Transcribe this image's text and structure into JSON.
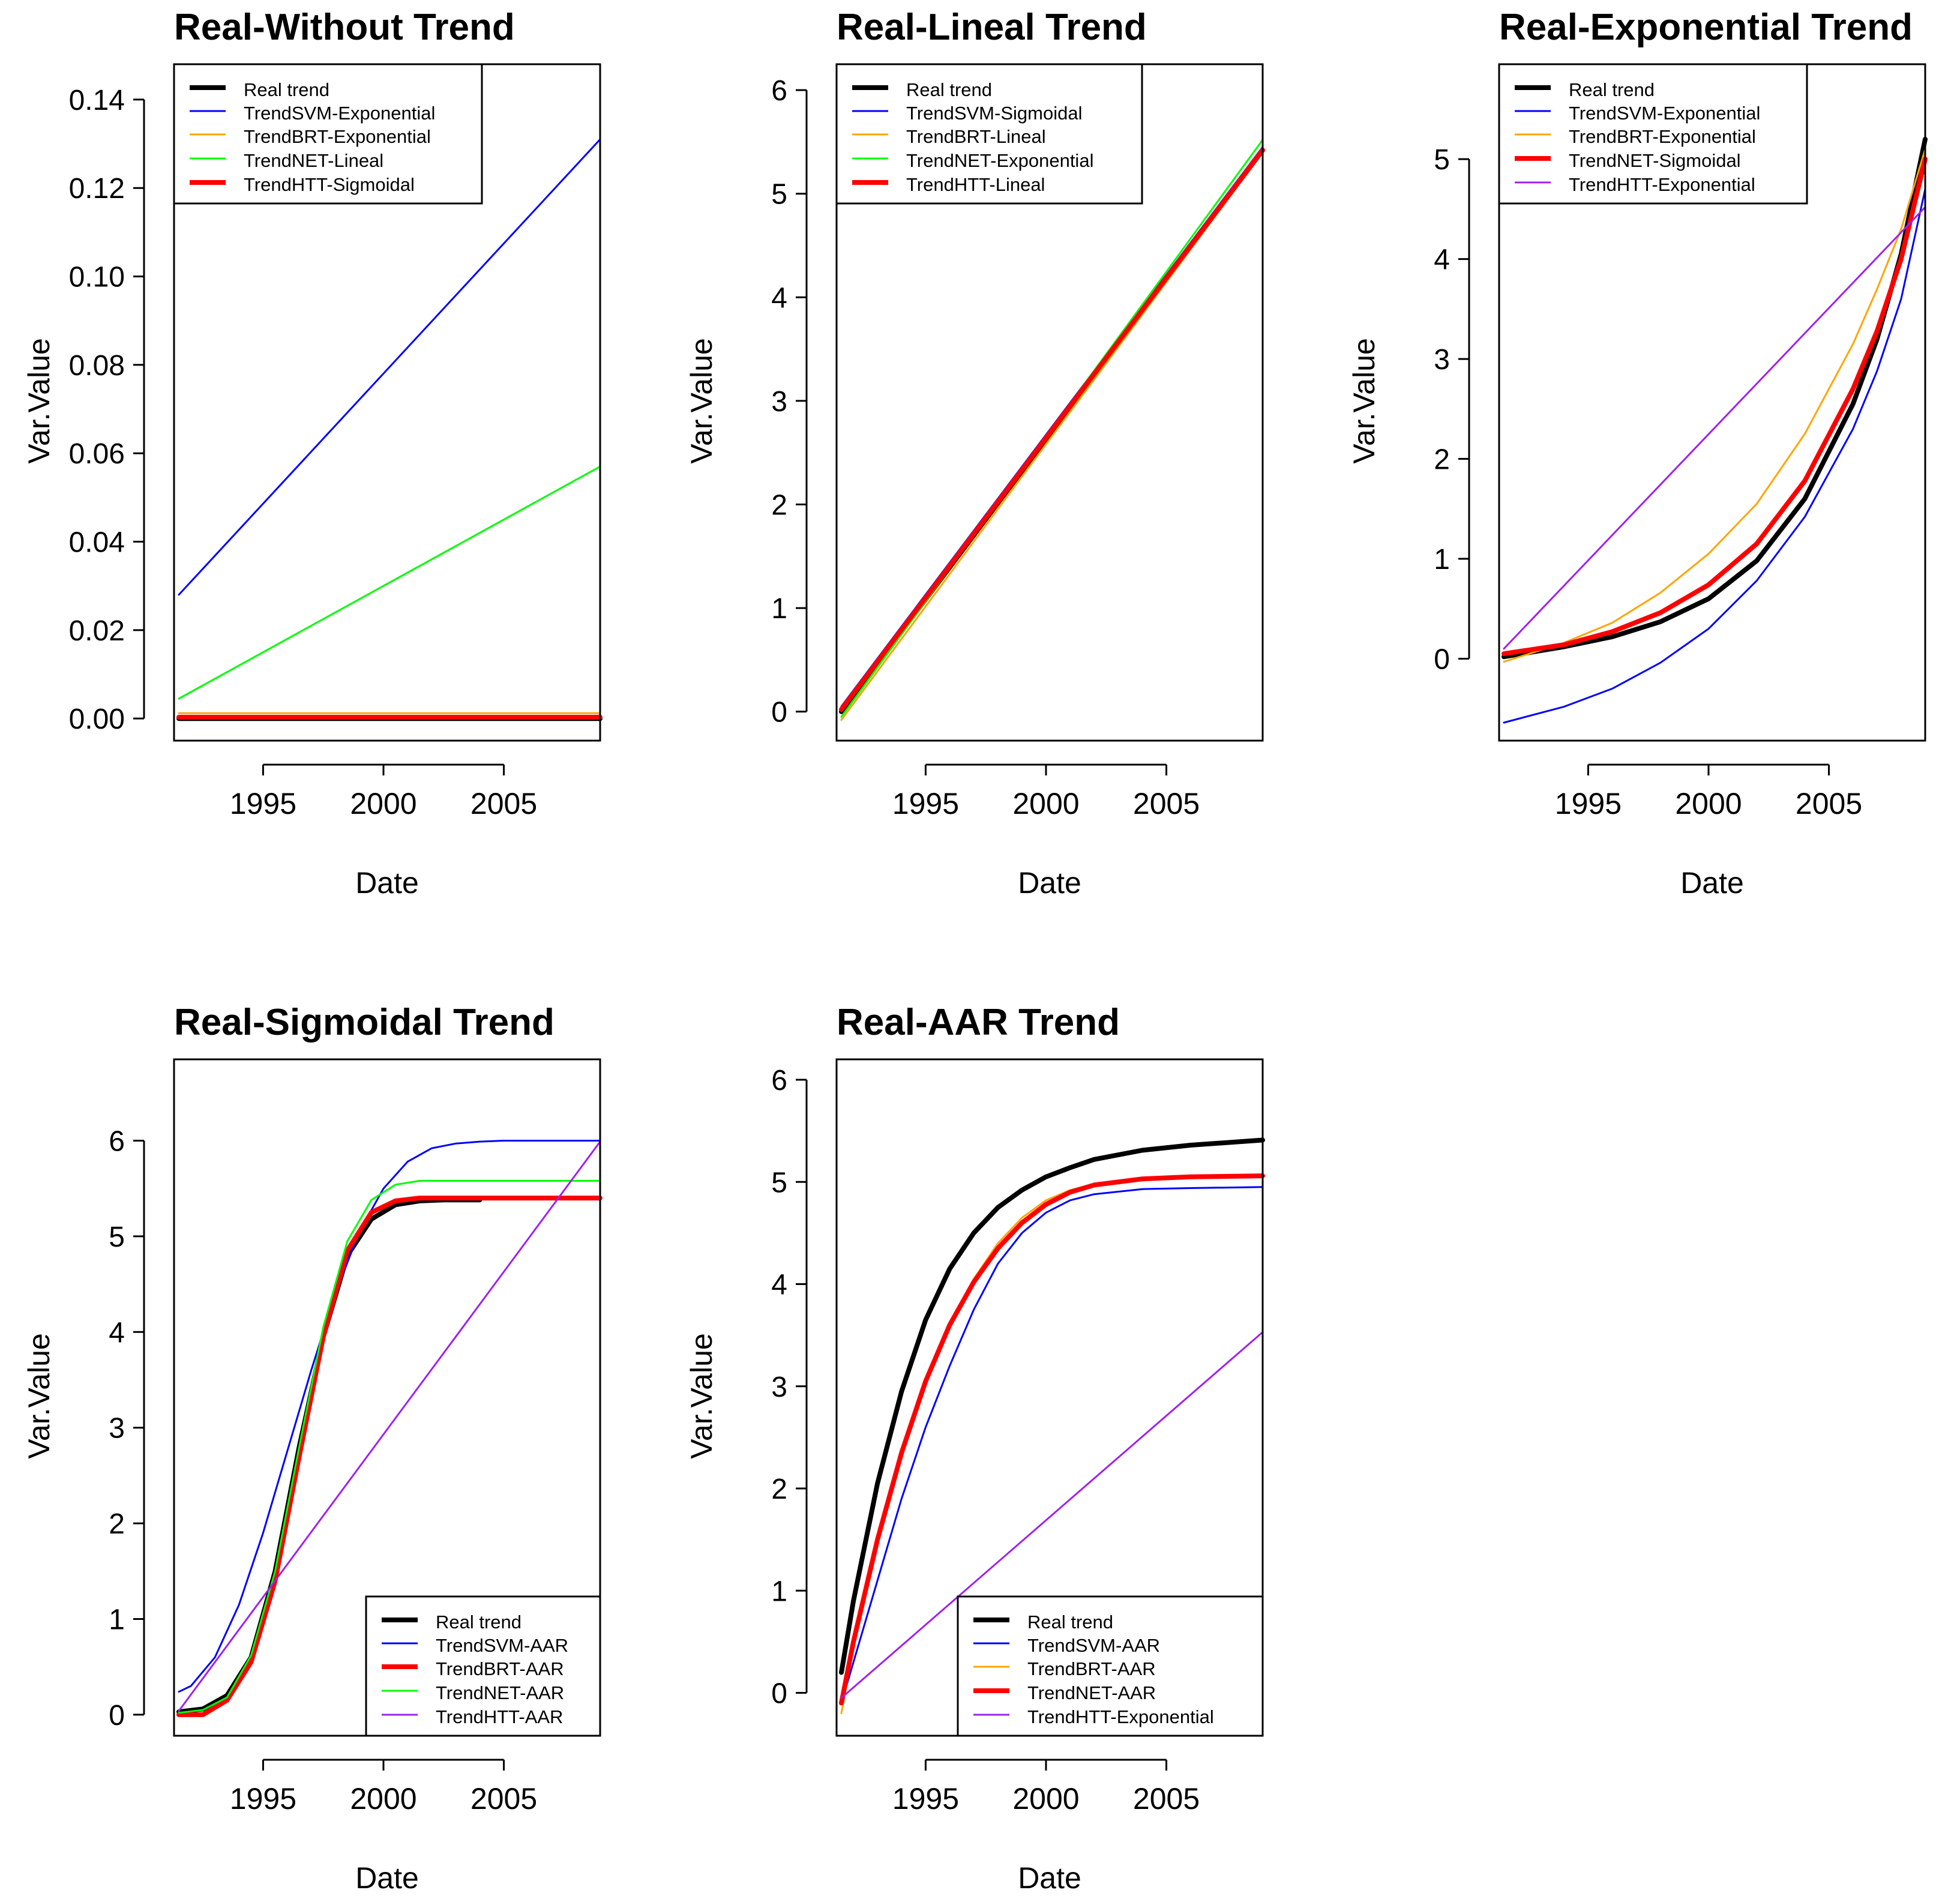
{
  "chart_data": [
    {
      "type": "line",
      "title": "Real-Without Trend",
      "xlabel": "Date",
      "ylabel": "Var.Value",
      "xlim": [
        1991.3,
        2009.0
      ],
      "ylim": [
        -0.005,
        0.148
      ],
      "x_ticks": [
        1995,
        2000,
        2005
      ],
      "y_ticks": [
        0,
        0.02,
        0.04,
        0.06,
        0.08,
        0.1,
        0.12,
        0.14
      ],
      "y_tick_labels": [
        "0.00",
        "0.02",
        "0.04",
        "0.06",
        "0.08",
        "0.10",
        "0.12",
        "0.14"
      ],
      "legend_position": "top-left",
      "grid": false,
      "series": [
        {
          "name": "Real trend",
          "color": "#000000",
          "x": [
            1991.5,
            2009.0
          ],
          "y": [
            0.0,
            0.0
          ]
        },
        {
          "name": "TrendSVM-Exponential",
          "color": "#0000ff",
          "x": [
            1991.5,
            2009.0
          ],
          "y": [
            0.028,
            0.131
          ]
        },
        {
          "name": "TrendBRT-Exponential",
          "color": "#ffa500",
          "x": [
            1991.5,
            2009.0
          ],
          "y": [
            0.0012,
            0.0012
          ]
        },
        {
          "name": "TrendNET-Lineal",
          "color": "#00ff00",
          "x": [
            1991.5,
            2009.0
          ],
          "y": [
            0.0045,
            0.057
          ]
        },
        {
          "name": "TrendHTT-Sigmoidal",
          "color": "#ff0000",
          "x": [
            1991.5,
            2009.0
          ],
          "y": [
            0.0003,
            0.0003
          ]
        }
      ]
    },
    {
      "type": "line",
      "title": "Real-Lineal Trend",
      "xlabel": "Date",
      "ylabel": "Var.Value",
      "xlim": [
        1991.3,
        2009.0
      ],
      "ylim": [
        -0.28,
        6.25
      ],
      "x_ticks": [
        1995,
        2000,
        2005
      ],
      "y_ticks": [
        0,
        1,
        2,
        3,
        4,
        5,
        6
      ],
      "legend_position": "top-left",
      "grid": false,
      "series": [
        {
          "name": "Real trend",
          "color": "#000000",
          "x": [
            1991.5,
            2009.0
          ],
          "y": [
            0.0,
            5.42
          ]
        },
        {
          "name": "TrendSVM-Sigmoidal",
          "color": "#0000ff",
          "x": [
            1991.5,
            2009.0
          ],
          "y": [
            0.05,
            5.45
          ]
        },
        {
          "name": "TrendBRT-Lineal",
          "color": "#ffa500",
          "x": [
            1991.5,
            2009.0
          ],
          "y": [
            -0.08,
            5.4
          ]
        },
        {
          "name": "TrendNET-Exponential",
          "color": "#00ff00",
          "x": [
            1991.5,
            2009.0
          ],
          "y": [
            -0.05,
            5.52
          ]
        },
        {
          "name": "TrendHTT-Lineal",
          "color": "#ff0000",
          "x": [
            1991.5,
            2009.0
          ],
          "y": [
            0.02,
            5.42
          ]
        }
      ]
    },
    {
      "type": "line",
      "title": "Real-Exponential Trend",
      "xlabel": "Date",
      "ylabel": "Var.Value",
      "xlim": [
        1991.3,
        2009.0
      ],
      "ylim": [
        -0.82,
        5.95
      ],
      "x_ticks": [
        1995,
        2000,
        2005
      ],
      "y_ticks": [
        0,
        1,
        2,
        3,
        4,
        5
      ],
      "legend_position": "top-left",
      "grid": false,
      "series": [
        {
          "name": "Real trend",
          "color": "#000000",
          "x": [
            1991.5,
            1994,
            1996,
            1998,
            2000,
            2002,
            2004,
            2006,
            2007,
            2008,
            2009
          ],
          "y": [
            0.02,
            0.12,
            0.22,
            0.37,
            0.6,
            0.98,
            1.6,
            2.55,
            3.2,
            4.05,
            5.2
          ]
        },
        {
          "name": "TrendSVM-Exponential",
          "color": "#0000ff",
          "x": [
            1991.5,
            1994,
            1996,
            1998,
            2000,
            2002,
            2004,
            2006,
            2007,
            2008,
            2009
          ],
          "y": [
            -0.64,
            -0.48,
            -0.3,
            -0.04,
            0.3,
            0.78,
            1.42,
            2.3,
            2.88,
            3.6,
            4.7
          ]
        },
        {
          "name": "TrendBRT-Exponential",
          "color": "#ffa500",
          "x": [
            1991.5,
            1994,
            1996,
            1998,
            2000,
            2002,
            2004,
            2006,
            2007,
            2008,
            2009
          ],
          "y": [
            -0.03,
            0.16,
            0.36,
            0.66,
            1.05,
            1.55,
            2.25,
            3.15,
            3.7,
            4.3,
            5.1
          ]
        },
        {
          "name": "TrendNET-Sigmoidal",
          "color": "#ff0000",
          "x": [
            1991.5,
            1994,
            1996,
            1998,
            2000,
            2002,
            2004,
            2006,
            2007,
            2008,
            2009
          ],
          "y": [
            0.05,
            0.14,
            0.27,
            0.46,
            0.74,
            1.15,
            1.78,
            2.7,
            3.28,
            4.0,
            5.0
          ]
        },
        {
          "name": "TrendHTT-Exponential",
          "color": "#a020f0",
          "x": [
            1991.5,
            2009.0
          ],
          "y": [
            0.1,
            4.52
          ]
        }
      ]
    },
    {
      "type": "line",
      "title": "Real-Sigmoidal Trend",
      "xlabel": "Date",
      "ylabel": "Var.Value",
      "xlim": [
        1991.3,
        2009.0
      ],
      "ylim": [
        -0.22,
        6.85
      ],
      "x_ticks": [
        1995,
        2000,
        2005
      ],
      "y_ticks": [
        0,
        1,
        2,
        3,
        4,
        5,
        6
      ],
      "legend_position": "bottom-right",
      "grid": false,
      "series": [
        {
          "name": "Real trend",
          "color": "#000000",
          "x": [
            1991.5,
            1992.5,
            1993.5,
            1994.5,
            1995.5,
            1996.5,
            1997.5,
            1998.5,
            1999.5,
            2000.5,
            2001.5,
            2002.5,
            2004
          ],
          "y": [
            0.03,
            0.06,
            0.2,
            0.6,
            1.5,
            2.8,
            3.95,
            4.8,
            5.18,
            5.33,
            5.37,
            5.38,
            5.38
          ]
        },
        {
          "name": "TrendSVM-AAR",
          "color": "#0000ff",
          "x": [
            1991.5,
            1992,
            1993,
            1994,
            1995,
            1996,
            1997,
            1998,
            1999,
            2000,
            2001,
            2002,
            2003,
            2004,
            2005,
            2009
          ],
          "y": [
            0.24,
            0.3,
            0.6,
            1.15,
            1.9,
            2.75,
            3.6,
            4.4,
            5.05,
            5.5,
            5.78,
            5.92,
            5.97,
            5.99,
            6.0,
            6.0
          ]
        },
        {
          "name": "TrendBRT-AAR",
          "color": "#ff0000",
          "x": [
            1991.5,
            1992.5,
            1993.5,
            1994.5,
            1995.5,
            1996.5,
            1997.5,
            1998.5,
            1999.5,
            2000.5,
            2001.5,
            2003,
            2009
          ],
          "y": [
            0.0,
            0.0,
            0.15,
            0.55,
            1.4,
            2.7,
            3.95,
            4.85,
            5.25,
            5.37,
            5.4,
            5.4,
            5.4
          ]
        },
        {
          "name": "TrendNET-AAR",
          "color": "#00ff00",
          "x": [
            1991.5,
            1992.5,
            1993.5,
            1994.5,
            1995.5,
            1996.5,
            1997.5,
            1998.5,
            1999.5,
            2000.5,
            2001.5,
            2003,
            2009
          ],
          "y": [
            0.02,
            0.05,
            0.18,
            0.62,
            1.5,
            2.8,
            4.05,
            4.95,
            5.38,
            5.54,
            5.58,
            5.58,
            5.58
          ]
        },
        {
          "name": "TrendHTT-AAR",
          "color": "#a020f0",
          "x": [
            1991.5,
            2009.0
          ],
          "y": [
            0.04,
            5.99
          ]
        }
      ]
    },
    {
      "type": "line",
      "title": "Real-AAR Trend",
      "xlabel": "Date",
      "ylabel": "Var.Value",
      "xlim": [
        1991.3,
        2009.0
      ],
      "ylim": [
        -0.42,
        6.2
      ],
      "x_ticks": [
        1995,
        2000,
        2005
      ],
      "y_ticks": [
        0,
        1,
        2,
        3,
        4,
        5,
        6
      ],
      "legend_position": "bottom-right",
      "grid": false,
      "series": [
        {
          "name": "Real trend",
          "color": "#000000",
          "x": [
            1991.5,
            1992,
            1993,
            1994,
            1995,
            1996,
            1997,
            1998,
            1999,
            2000,
            2001,
            2002,
            2004,
            2006,
            2009
          ],
          "y": [
            0.2,
            0.9,
            2.05,
            2.95,
            3.65,
            4.15,
            4.5,
            4.75,
            4.92,
            5.05,
            5.14,
            5.22,
            5.31,
            5.36,
            5.41
          ]
        },
        {
          "name": "TrendSVM-AAR",
          "color": "#0000ff",
          "x": [
            1991.5,
            1992,
            1993,
            1994,
            1995,
            1996,
            1997,
            1998,
            1999,
            2000,
            2001,
            2002,
            2004,
            2006,
            2009
          ],
          "y": [
            -0.1,
            0.3,
            1.1,
            1.9,
            2.6,
            3.2,
            3.75,
            4.2,
            4.5,
            4.7,
            4.82,
            4.88,
            4.93,
            4.94,
            4.95
          ]
        },
        {
          "name": "TrendBRT-AAR",
          "color": "#ffa500",
          "x": [
            1991.5,
            1992,
            1993,
            1994,
            1995,
            1996,
            1997,
            1998,
            1999,
            2000,
            2001,
            2002,
            2004,
            2006,
            2009
          ],
          "y": [
            -0.2,
            0.45,
            1.45,
            2.3,
            3.05,
            3.6,
            4.05,
            4.4,
            4.65,
            4.82,
            4.92,
            4.98,
            5.03,
            5.05,
            5.06
          ]
        },
        {
          "name": "TrendNET-AAR",
          "color": "#ff0000",
          "x": [
            1991.5,
            1992,
            1993,
            1994,
            1995,
            1996,
            1997,
            1998,
            1999,
            2000,
            2001,
            2002,
            2004,
            2006,
            2009
          ],
          "y": [
            -0.1,
            0.5,
            1.5,
            2.35,
            3.05,
            3.6,
            4.02,
            4.35,
            4.6,
            4.78,
            4.9,
            4.97,
            5.03,
            5.05,
            5.06
          ]
        },
        {
          "name": "TrendHTT-Exponential",
          "color": "#a020f0",
          "x": [
            1991.5,
            2009.0
          ],
          "y": [
            -0.05,
            3.53
          ]
        }
      ]
    }
  ]
}
